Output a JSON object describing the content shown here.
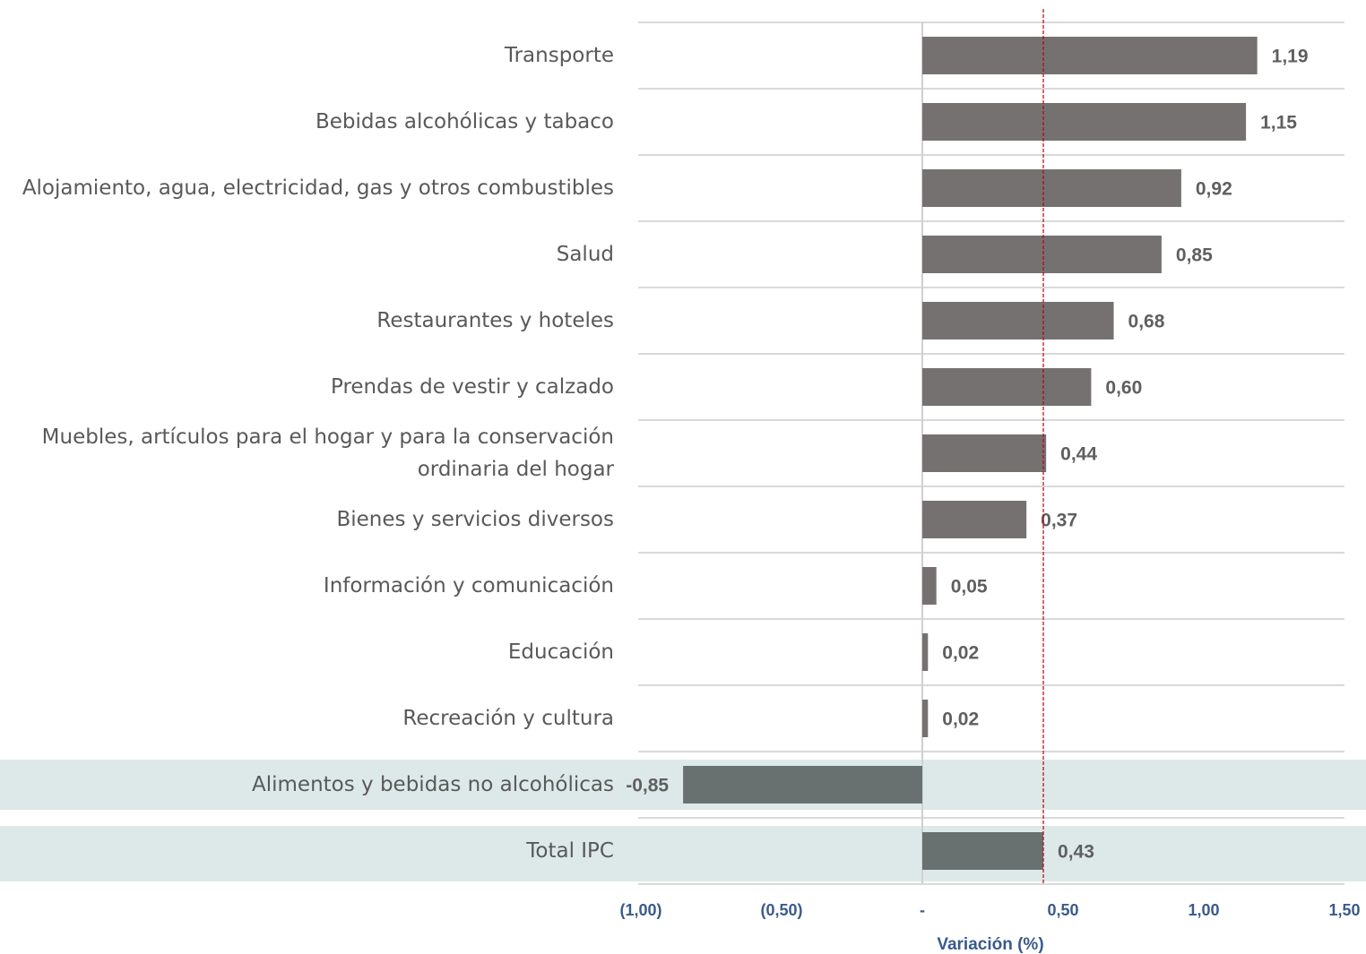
{
  "chart_data": {
    "type": "barh",
    "categories": [
      "Transporte",
      "Bebidas alcohólicas y tabaco",
      "Alojamiento, agua, electricidad, gas y otros combustibles",
      "Salud",
      "Restaurantes y hoteles",
      "Prendas de vestir y calzado",
      "Muebles, artículos para el hogar y para la conservación ordinaria del hogar",
      "Bienes y servicios diversos",
      "Información y comunicación",
      "Educación",
      "Recreación y cultura",
      "Alimentos y bebidas no alcohólicas",
      "Total IPC"
    ],
    "values": [
      1.19,
      1.15,
      0.92,
      0.85,
      0.68,
      0.6,
      0.44,
      0.37,
      0.05,
      0.02,
      0.02,
      -0.85,
      0.43
    ],
    "value_labels": [
      "1,19",
      "1,15",
      "0,92",
      "0,85",
      "0,68",
      "0,60",
      "0,44",
      "0,37",
      "0,05",
      "0,02",
      "0,02",
      "-0,85",
      "0,43"
    ],
    "color": "#767171",
    "highlighted": [
      "Alimentos y bebidas no alcohólicas",
      "Total IPC"
    ],
    "highlight_color": "#687170",
    "band_color": "#dde9e8",
    "xlim": [
      -1,
      1.5
    ],
    "xticks": [
      {
        "value": -1,
        "label": "(1,00)"
      },
      {
        "value": -0.5,
        "label": "(0,50)"
      },
      {
        "value": 0,
        "label": "-"
      },
      {
        "value": 0.5,
        "label": "0,50"
      },
      {
        "value": 1,
        "label": "1,00"
      },
      {
        "value": 1.5,
        "label": "1,50"
      }
    ],
    "xlabel": "Variación (%)",
    "reference_line": 0.43,
    "reference_line_color": "#c00000",
    "grid": true
  }
}
